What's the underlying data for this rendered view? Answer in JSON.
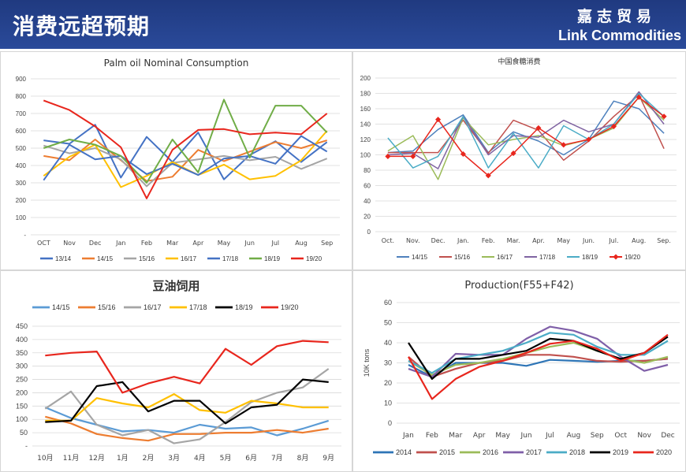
{
  "header": {
    "title": "消费远超预期",
    "brand_cn": "嘉志贸易",
    "brand_en": "Link Commodities"
  },
  "chart_data": [
    {
      "type": "line",
      "title": "Palm oil Nominal Consumption",
      "categories": [
        "OCT",
        "Nov",
        "Dec",
        "Jan",
        "Feb",
        "Mar",
        "Apr",
        "May",
        "Jun",
        "Jul",
        "Aug",
        "Sep"
      ],
      "ylim": [
        0,
        900
      ],
      "yticks": [
        "-",
        "100",
        "200",
        "300",
        "400",
        "500",
        "600",
        "700",
        "800",
        "900"
      ],
      "legend_position": "bottom",
      "grid": true,
      "series": [
        {
          "name": "13/14",
          "color": "#4472c4",
          "values": [
            545,
            525,
            635,
            330,
            565,
            420,
            590,
            320,
            460,
            540,
            420,
            535
          ]
        },
        {
          "name": "14/15",
          "color": "#ed7d31",
          "values": [
            455,
            430,
            550,
            430,
            310,
            335,
            490,
            425,
            480,
            535,
            500,
            545
          ]
        },
        {
          "name": "15/16",
          "color": "#a5a5a5",
          "values": [
            515,
            470,
            500,
            435,
            280,
            415,
            435,
            455,
            430,
            450,
            380,
            440
          ]
        },
        {
          "name": "16/17",
          "color": "#ffc000",
          "values": [
            340,
            450,
            520,
            275,
            340,
            420,
            345,
            405,
            320,
            340,
            430,
            600
          ]
        },
        {
          "name": "17/18",
          "color": "#4472c4",
          "values": [
            315,
            520,
            435,
            455,
            350,
            410,
            345,
            440,
            455,
            410,
            570,
            480
          ]
        },
        {
          "name": "18/19",
          "color": "#70ad47",
          "values": [
            500,
            550,
            520,
            455,
            300,
            550,
            360,
            780,
            445,
            745,
            745,
            590
          ]
        },
        {
          "name": "19/20",
          "color": "#e8261d",
          "values": [
            775,
            720,
            625,
            505,
            210,
            490,
            605,
            610,
            580,
            590,
            580,
            700
          ]
        }
      ]
    },
    {
      "type": "line",
      "title": "中国食糖消费",
      "categories": [
        "Oct.",
        "Nov.",
        "Dec.",
        "Jan.",
        "Feb.",
        "Mar.",
        "Apr.",
        "May",
        "Jun.",
        "Jul.",
        "Aug.",
        "Sep."
      ],
      "ylim": [
        0,
        200
      ],
      "yticks": [
        "0",
        "20",
        "40",
        "60",
        "80",
        "100",
        "120",
        "140",
        "160",
        "180",
        "200"
      ],
      "legend_position": "bottom",
      "grid": true,
      "series": [
        {
          "name": "14/15",
          "color": "#4e81bd",
          "values": [
            103,
            105,
            133,
            152,
            103,
            130,
            118,
            100,
            120,
            170,
            160,
            128
          ]
        },
        {
          "name": "15/16",
          "color": "#c0504d",
          "values": [
            103,
            103,
            103,
            145,
            102,
            145,
            132,
            93,
            118,
            150,
            178,
            108
          ]
        },
        {
          "name": "16/17",
          "color": "#9bbb59",
          "values": [
            105,
            125,
            68,
            148,
            113,
            120,
            125,
            112,
            120,
            135,
            175,
            145
          ]
        },
        {
          "name": "17/18",
          "color": "#8064a2",
          "values": [
            100,
            102,
            82,
            150,
            100,
            125,
            123,
            145,
            130,
            140,
            182,
            140
          ]
        },
        {
          "name": "18/19",
          "color": "#4bacc6",
          "values": [
            122,
            83,
            98,
            150,
            83,
            128,
            83,
            138,
            120,
            140,
            180,
            150
          ]
        },
        {
          "name": "19/20",
          "color": "#e8261d",
          "values": [
            98,
            98,
            146,
            101,
            73,
            102,
            135,
            113,
            120,
            137,
            175,
            150
          ]
        }
      ]
    },
    {
      "type": "line",
      "title": "豆油饲用",
      "categories": [
        "10月",
        "11月",
        "12月",
        "1月",
        "2月",
        "3月",
        "4月",
        "5月",
        "6月",
        "7月",
        "8月",
        "9月"
      ],
      "ylim": [
        0,
        450
      ],
      "yticks": [
        "-",
        "50",
        "100",
        "150",
        "200",
        "250",
        "300",
        "350",
        "400",
        "450"
      ],
      "legend_position": "top",
      "grid": true,
      "series": [
        {
          "name": "14/15",
          "color": "#5b9bd5",
          "values": [
            145,
            105,
            80,
            55,
            60,
            50,
            80,
            65,
            70,
            40,
            65,
            95
          ]
        },
        {
          "name": "15/16",
          "color": "#ed7d31",
          "values": [
            110,
            85,
            45,
            30,
            20,
            45,
            45,
            50,
            50,
            60,
            50,
            65
          ]
        },
        {
          "name": "16/17",
          "color": "#a5a5a5",
          "values": [
            140,
            205,
            80,
            40,
            60,
            10,
            25,
            90,
            165,
            200,
            220,
            290
          ]
        },
        {
          "name": "17/18",
          "color": "#ffc000",
          "values": [
            95,
            95,
            180,
            160,
            145,
            195,
            135,
            125,
            170,
            160,
            145,
            145
          ]
        },
        {
          "name": "18/19",
          "color": "#000000",
          "values": [
            90,
            95,
            225,
            240,
            130,
            170,
            170,
            85,
            145,
            155,
            250,
            240
          ]
        },
        {
          "name": "19/20",
          "color": "#e8261d",
          "values": [
            340,
            350,
            355,
            200,
            235,
            260,
            235,
            365,
            305,
            375,
            395,
            390
          ]
        }
      ]
    },
    {
      "type": "line",
      "title": "Production(F55+F42)",
      "categories": [
        "Jan",
        "Feb",
        "Mar",
        "Apr",
        "May",
        "Jun",
        "Jul",
        "Aug",
        "Sep",
        "Oct",
        "Nov",
        "Dec"
      ],
      "ylim": [
        0,
        60
      ],
      "yticks": [
        "0",
        "10",
        "20",
        "30",
        "40",
        "50",
        "60"
      ],
      "ylabel": "10K tons",
      "legend_position": "bottom",
      "grid": true,
      "series": [
        {
          "name": "2014",
          "color": "#2e75b6",
          "values": [
            29,
            23,
            30,
            30,
            30,
            28.5,
            31.5,
            31,
            30.5,
            31,
            31,
            32
          ]
        },
        {
          "name": "2015",
          "color": "#c0504d",
          "values": [
            33,
            23,
            27,
            30,
            31,
            34,
            34,
            33,
            31,
            30.5,
            31,
            32
          ]
        },
        {
          "name": "2016",
          "color": "#9bbb59",
          "values": [
            31,
            24,
            29,
            30,
            32,
            35,
            38,
            40,
            36,
            32,
            30,
            33
          ]
        },
        {
          "name": "2017",
          "color": "#7f5fa8",
          "values": [
            27,
            23,
            34.5,
            34,
            34,
            42,
            48,
            46,
            42,
            33,
            26,
            29
          ]
        },
        {
          "name": "2018",
          "color": "#4bacc6",
          "values": [
            31,
            25,
            32,
            34,
            36,
            40,
            45,
            44,
            38,
            34,
            34,
            41
          ]
        },
        {
          "name": "2019",
          "color": "#000000",
          "values": [
            40,
            22,
            32,
            32,
            34,
            36,
            42,
            41,
            36,
            32,
            35,
            43
          ]
        },
        {
          "name": "2020",
          "color": "#e8261d",
          "values": [
            33,
            12,
            22,
            28,
            31,
            35,
            39.5,
            41,
            37,
            31,
            35,
            44
          ]
        }
      ]
    }
  ]
}
